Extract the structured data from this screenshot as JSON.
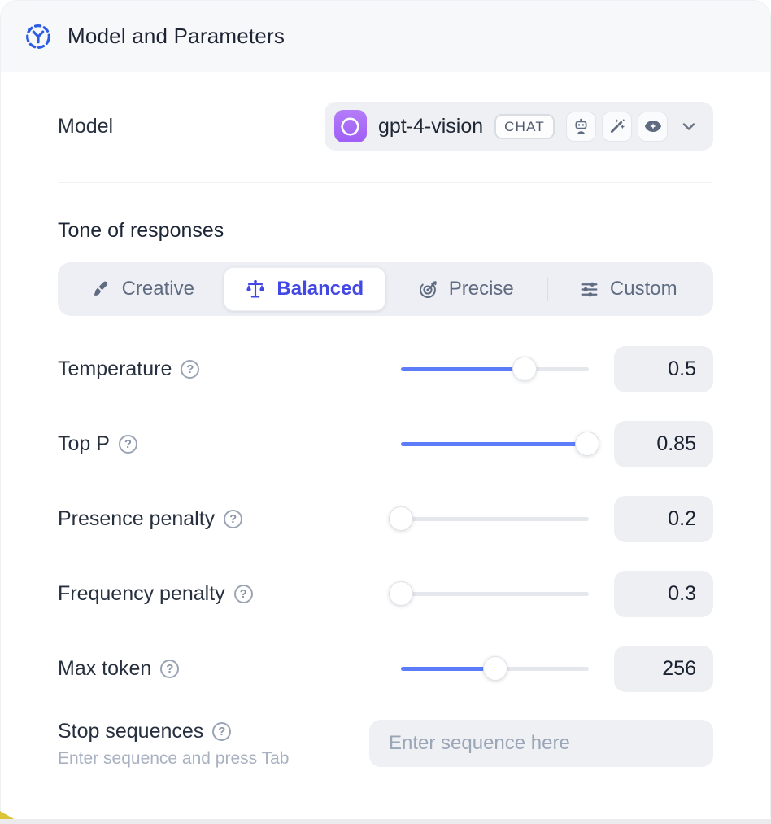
{
  "header": {
    "title": "Model and Parameters"
  },
  "model_row": {
    "label": "Model",
    "selected_model": "gpt-4-vision",
    "type_badge": "CHAT",
    "capability_icons": [
      "chatbot-icon",
      "magic-wand-icon",
      "vision-eye-icon"
    ]
  },
  "tone": {
    "heading": "Tone of responses",
    "options": [
      {
        "label": "Creative",
        "icon": "paintbrush-icon",
        "selected": false
      },
      {
        "label": "Balanced",
        "icon": "scales-icon",
        "selected": true
      },
      {
        "label": "Precise",
        "icon": "target-icon",
        "selected": false
      },
      {
        "label": "Custom",
        "icon": "sliders-icon",
        "selected": false
      }
    ]
  },
  "parameters": [
    {
      "label": "Temperature",
      "value": "0.5",
      "slider_percent": 66
    },
    {
      "label": "Top P",
      "value": "0.85",
      "slider_percent": 99
    },
    {
      "label": "Presence penalty",
      "value": "0.2",
      "slider_percent": 0
    },
    {
      "label": "Frequency penalty",
      "value": "0.3",
      "slider_percent": 0
    },
    {
      "label": "Max token",
      "value": "256",
      "slider_percent": 50
    }
  ],
  "stop_sequences": {
    "label": "Stop sequences",
    "hint": "Enter sequence and press Tab",
    "placeholder": "Enter sequence here"
  },
  "misc": {
    "help_glyph": "?"
  },
  "colors": {
    "slider_accent": "#5c7cfa",
    "selected_tab_indigo": "#4348e4",
    "openai_purple": "#a05ef6",
    "header_icon_blue": "#2d5be3",
    "field_bg": "#eef0f4"
  }
}
